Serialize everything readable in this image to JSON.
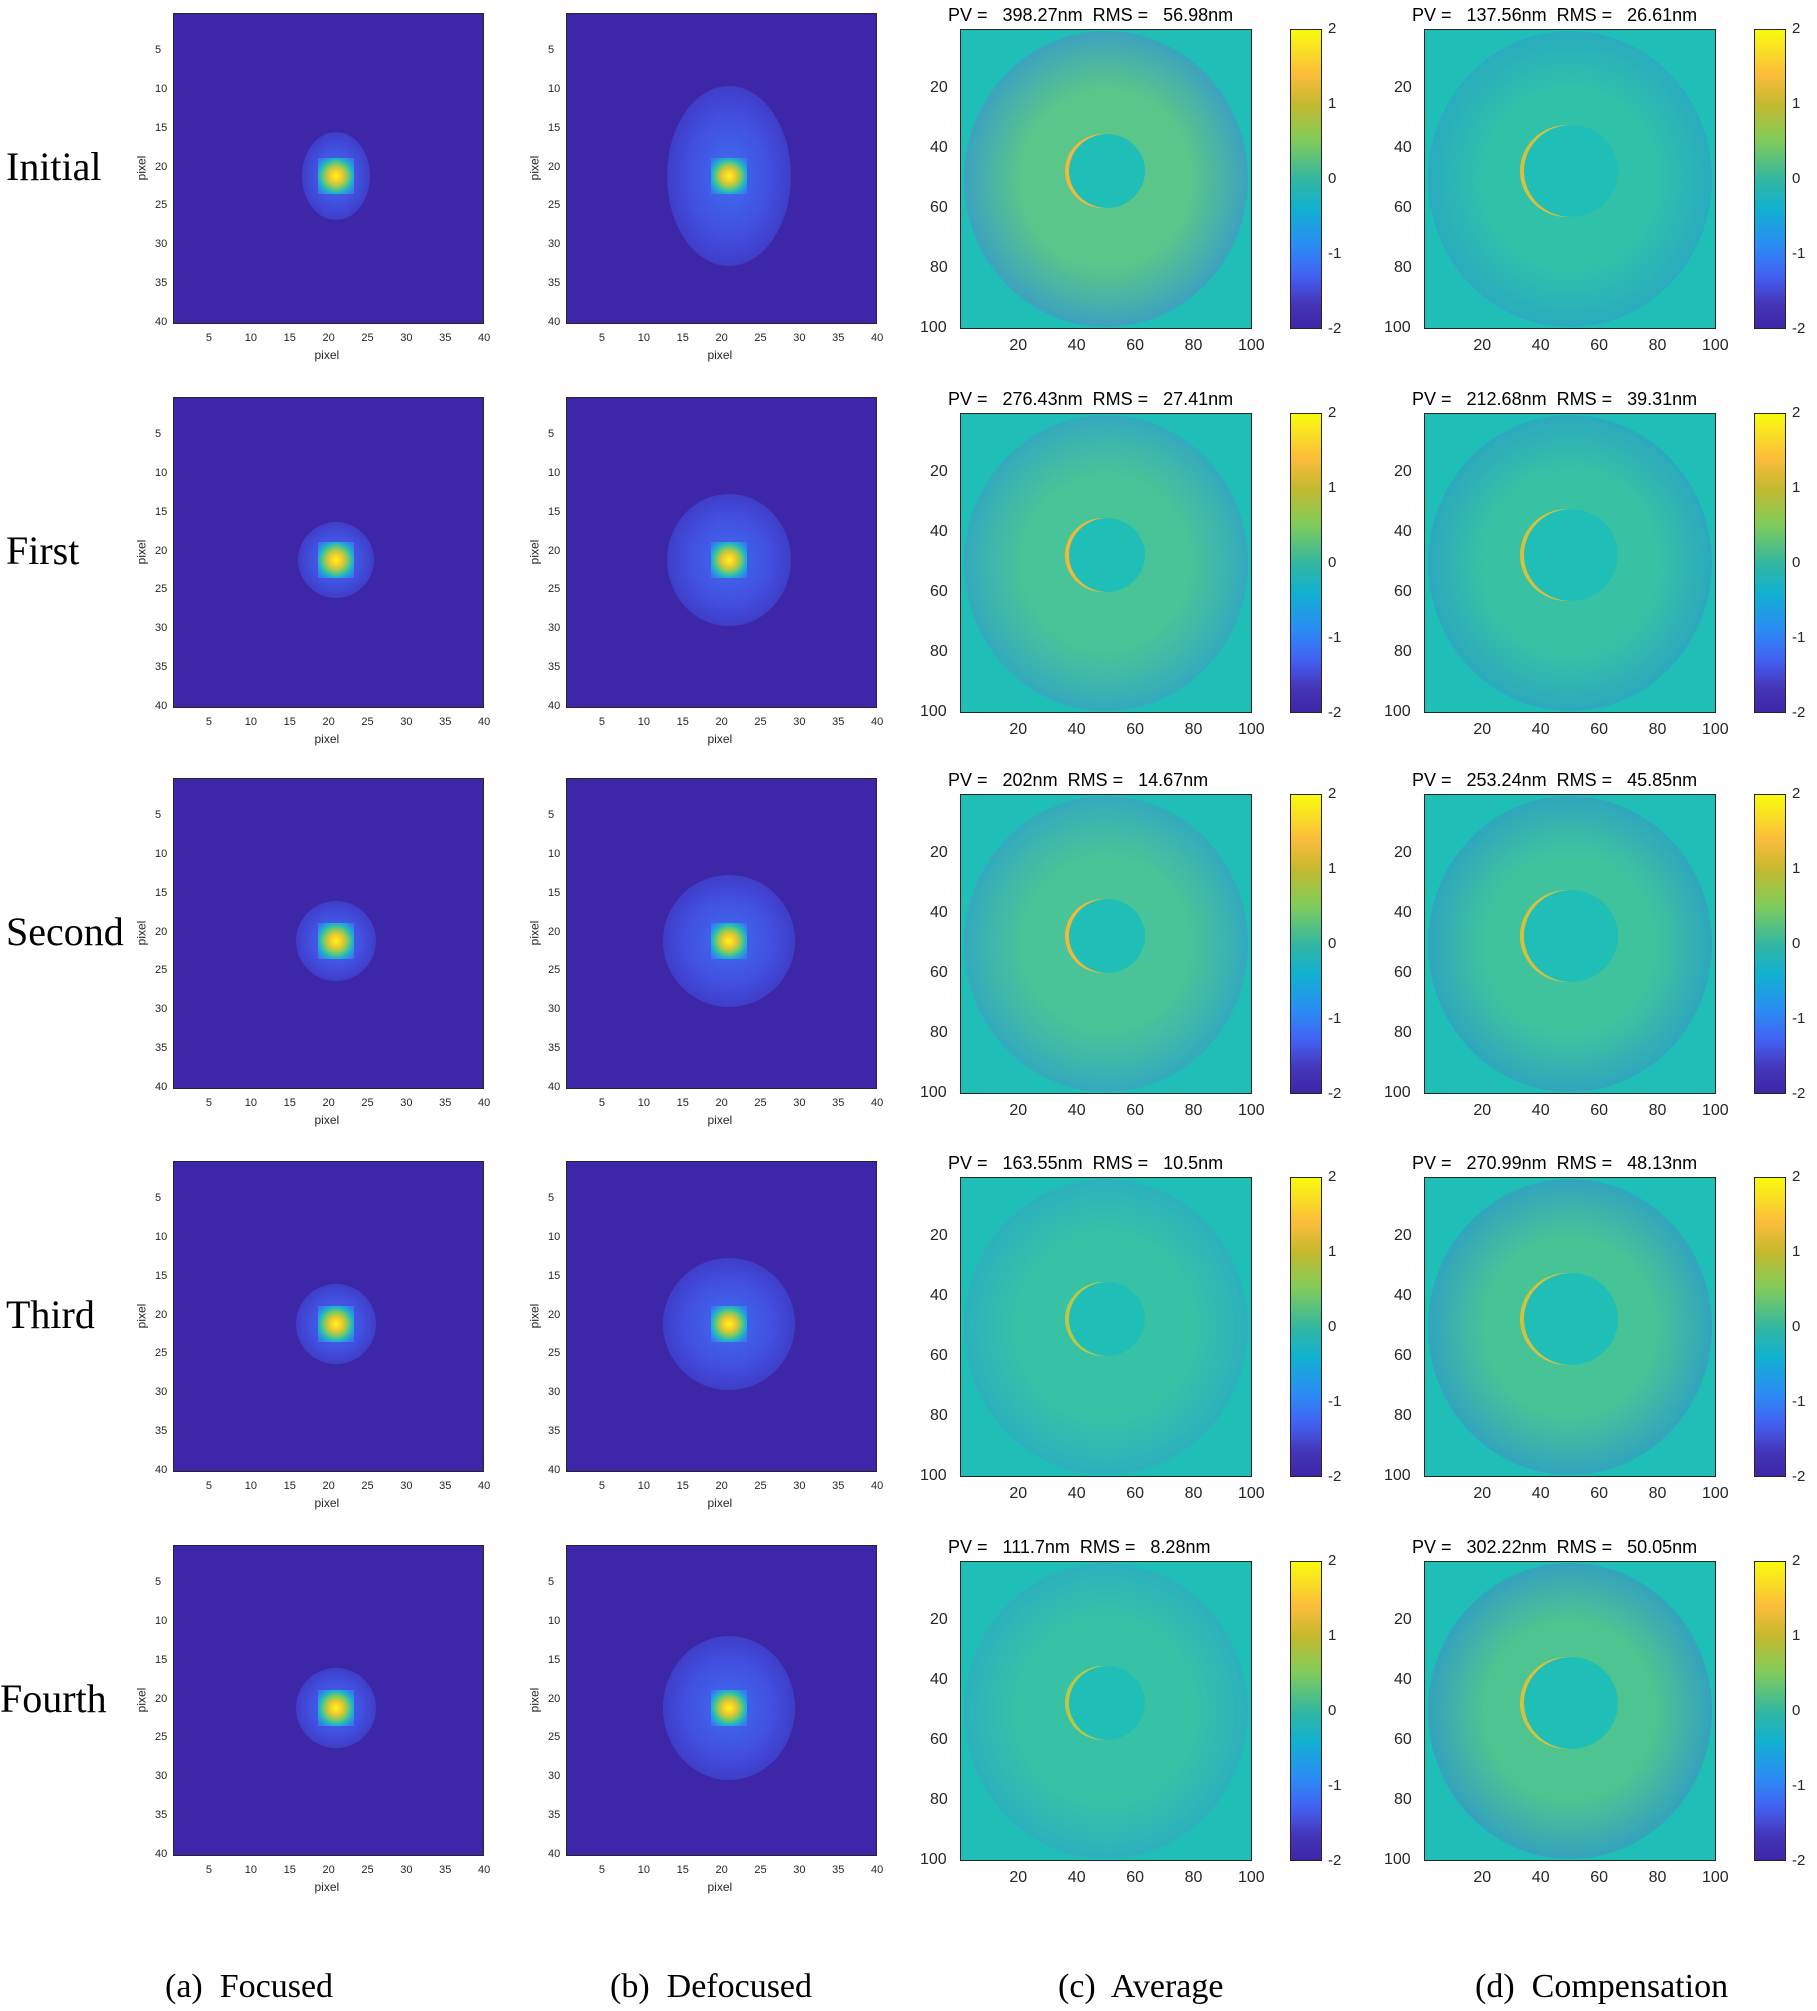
{
  "figure": {
    "row_labels": [
      "Initial",
      "First",
      "Second",
      "Third",
      "Fourth"
    ],
    "captions": [
      "(a)  Focused",
      "(b)  Defocused",
      "(c)  Average",
      "(d)  Compensation"
    ],
    "psf_axis": {
      "xlabel": "pixel",
      "ylabel": "pixel",
      "yticks": [
        "5",
        "10",
        "15",
        "20",
        "25",
        "30",
        "35",
        "40"
      ],
      "xticks": [
        "5",
        "10",
        "15",
        "20",
        "25",
        "30",
        "35",
        "40"
      ]
    },
    "wavefront_axis": {
      "yticks": [
        "20",
        "40",
        "60",
        "80",
        "100"
      ],
      "xticks": [
        "20",
        "40",
        "60",
        "80",
        "100"
      ],
      "colorbar_ticks": [
        "2",
        "1",
        "0",
        "-1",
        "-2"
      ]
    },
    "average_titles": [
      "PV =   398.27nm  RMS =   56.98nm",
      "PV =   276.43nm  RMS =   27.41nm",
      "PV =   202nm  RMS =   14.67nm",
      "PV =   163.55nm  RMS =   10.5nm",
      "PV =   111.7nm  RMS =   8.28nm"
    ],
    "compensation_titles": [
      "PV =   137.56nm  RMS =   26.61nm",
      "PV =   212.68nm  RMS =   39.31nm",
      "PV =   253.24nm  RMS =   45.85nm",
      "PV =   270.99nm  RMS =   48.13nm",
      "PV =   302.22nm  RMS =   50.05nm"
    ]
  },
  "chart_data": {
    "type": "heatmap",
    "title": "PSF images and wavefront maps across correction iterations",
    "rows": [
      "Initial",
      "First",
      "Second",
      "Third",
      "Fourth"
    ],
    "columns": [
      "(a) Focused",
      "(b) Defocused",
      "(c) Average",
      "(d) Compensation"
    ],
    "psf_panels": {
      "xlim": [
        1,
        40
      ],
      "ylim": [
        1,
        40
      ],
      "xlabel": "pixel",
      "ylabel": "pixel",
      "peak_location": [
        21,
        21
      ]
    },
    "wavefront_panels": {
      "xlim": [
        1,
        100
      ],
      "ylim": [
        1,
        100
      ],
      "colorbar_range": [
        -2,
        2
      ]
    },
    "average": {
      "PV_nm": [
        398.27,
        276.43,
        202,
        163.55,
        111.7
      ],
      "RMS_nm": [
        56.98,
        27.41,
        14.67,
        10.5,
        8.28
      ]
    },
    "compensation": {
      "PV_nm": [
        137.56,
        212.68,
        253.24,
        270.99,
        302.22
      ],
      "RMS_nm": [
        26.61,
        39.31,
        45.85,
        48.13,
        50.05
      ]
    }
  }
}
